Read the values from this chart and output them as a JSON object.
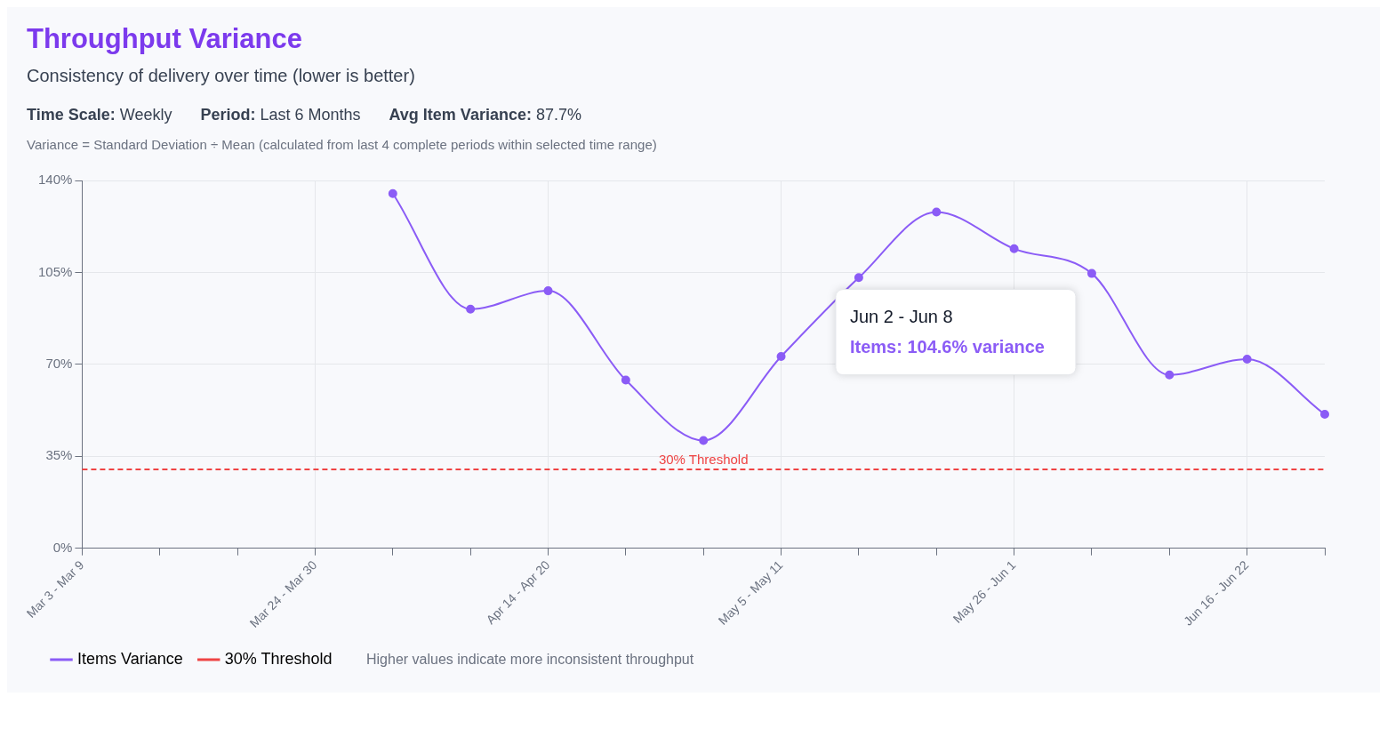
{
  "chart_data": {
    "type": "line",
    "title": "Throughput Variance",
    "subtitle": "Consistency of delivery over time (lower is better)",
    "annotations": [
      "Time Scale: Weekly",
      "Period: Last 6 Months",
      "Avg Item Variance: 87.7%",
      "Variance = Standard Deviation ÷ Mean (calculated from last 4 complete periods within selected time range)",
      "Jun 2 - Jun 8",
      "Items: 104.6% variance",
      "Higher values indicate more inconsistent throughput"
    ],
    "categories": [
      "Mar 3 - Mar 9",
      null,
      null,
      "Mar 24 - Mar 30",
      null,
      null,
      "Apr 14 - Apr 20",
      null,
      null,
      "May 5 - May 11",
      null,
      null,
      "May 26 - Jun 1",
      null,
      null,
      "Jun 16 - Jun 22",
      null
    ],
    "series": [
      {
        "name": "Items Variance",
        "color": "#8b5cf6",
        "values": [
          null,
          null,
          null,
          null,
          135,
          91,
          98,
          64,
          41,
          73,
          103,
          128,
          114,
          104.6,
          66,
          72,
          51
        ]
      }
    ],
    "ylim": [
      0,
      140
    ],
    "yticks": [
      {
        "value": 0,
        "label": "0%"
      },
      {
        "value": 35,
        "label": "35%"
      },
      {
        "value": 70,
        "label": "70%"
      },
      {
        "value": 105,
        "label": "105%"
      },
      {
        "value": 140,
        "label": "140%"
      }
    ],
    "ref_lines": [
      {
        "axis": "y",
        "value": 30,
        "label": "30% Threshold",
        "color": "#ef4444",
        "line_style": "dashed"
      }
    ],
    "grid": true,
    "legend": "bottom left",
    "marker": "circle",
    "line_style": "solid"
  }
}
